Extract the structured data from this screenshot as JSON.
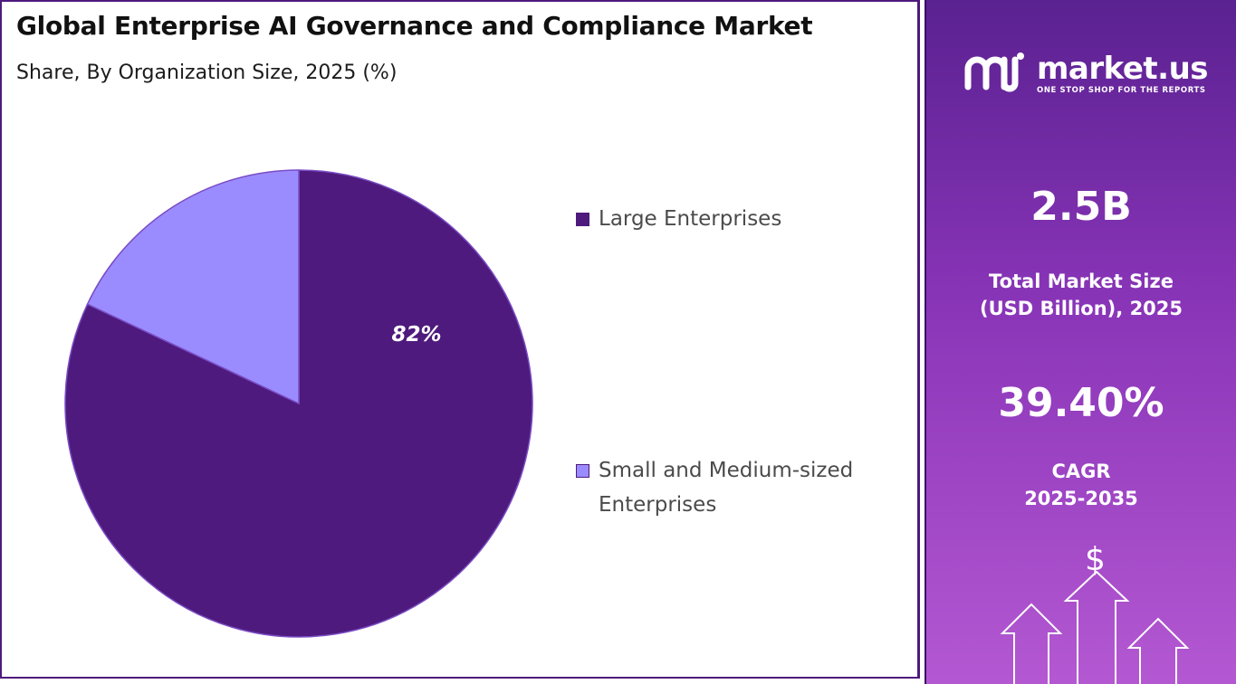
{
  "header": {
    "title": "Global Enterprise AI Governance and Compliance Market",
    "subtitle": "Share, By Organization Size, 2025 (%)"
  },
  "chart_data": {
    "type": "pie",
    "title": "Global Enterprise AI Governance and Compliance Market",
    "subtitle": "Share, By Organization Size, 2025 (%)",
    "categories": [
      "Large Enterprises",
      "Small and Medium-sized Enterprises"
    ],
    "values": [
      82,
      18
    ],
    "data_labels": [
      "82%",
      ""
    ],
    "colors": [
      "#4e1a7d",
      "#9a8cff"
    ],
    "start_angle_deg": 0,
    "direction": "clockwise",
    "legend_position": "right"
  },
  "legend": {
    "items": [
      {
        "label": "Large Enterprises",
        "color": "#4e1a7d"
      },
      {
        "label": "Small and Medium-sized Enterprises",
        "color": "#9a8cff"
      }
    ]
  },
  "sidebar": {
    "logo": {
      "name": "market.us",
      "tagline": "ONE STOP SHOP FOR THE REPORTS"
    },
    "market_size": {
      "value": "2.5B",
      "caption_line1": "Total Market Size",
      "caption_line2": "(USD Billion), 2025"
    },
    "cagr": {
      "value": "39.40%",
      "caption_line1": "CAGR",
      "caption_line2": "2025-2035"
    },
    "dollar_symbol": "$",
    "colors": {
      "top": "#5a2191",
      "bottom": "#b458d2"
    }
  }
}
